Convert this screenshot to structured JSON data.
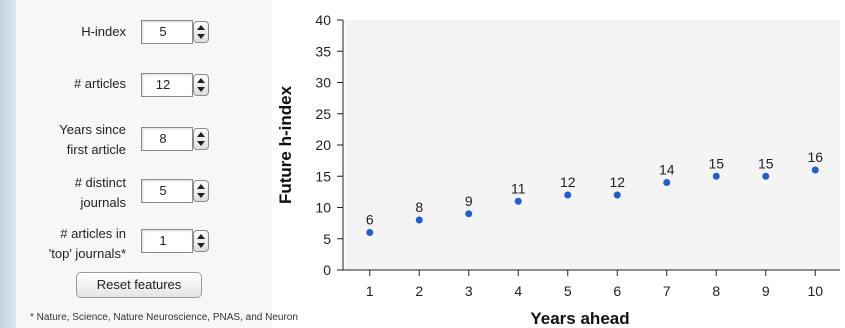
{
  "features": [
    {
      "label_lines": [
        "H-index"
      ],
      "value": "5"
    },
    {
      "label_lines": [
        "# articles"
      ],
      "value": "12"
    },
    {
      "label_lines": [
        "Years since",
        "first article"
      ],
      "value": "8"
    },
    {
      "label_lines": [
        "# distinct",
        "journals"
      ],
      "value": "5"
    },
    {
      "label_lines": [
        "# articles in",
        "'top' journals*"
      ],
      "value": "1"
    }
  ],
  "reset_label": "Reset features",
  "footnote": "* Nature, Science, Nature Neuroscience, PNAS, and Neuron",
  "colors": {
    "point": "#1f5fd6",
    "plot_bg": "#f4f4f4"
  },
  "chart_data": {
    "type": "scatter",
    "x": [
      1,
      2,
      3,
      4,
      5,
      6,
      7,
      8,
      9,
      10
    ],
    "y": [
      6,
      8,
      9,
      11,
      12,
      12,
      14,
      15,
      15,
      16
    ],
    "point_labels": [
      "6",
      "8",
      "9",
      "11",
      "12",
      "12",
      "14",
      "15",
      "15",
      "16"
    ],
    "xlabel": "Years ahead",
    "ylabel": "Future h-index",
    "xlim": [
      0.5,
      10.5
    ],
    "ylim": [
      0,
      40
    ],
    "yticks": [
      0,
      5,
      10,
      15,
      20,
      25,
      30,
      35,
      40
    ],
    "xticks": [
      1,
      2,
      3,
      4,
      5,
      6,
      7,
      8,
      9,
      10
    ],
    "grid": false
  }
}
